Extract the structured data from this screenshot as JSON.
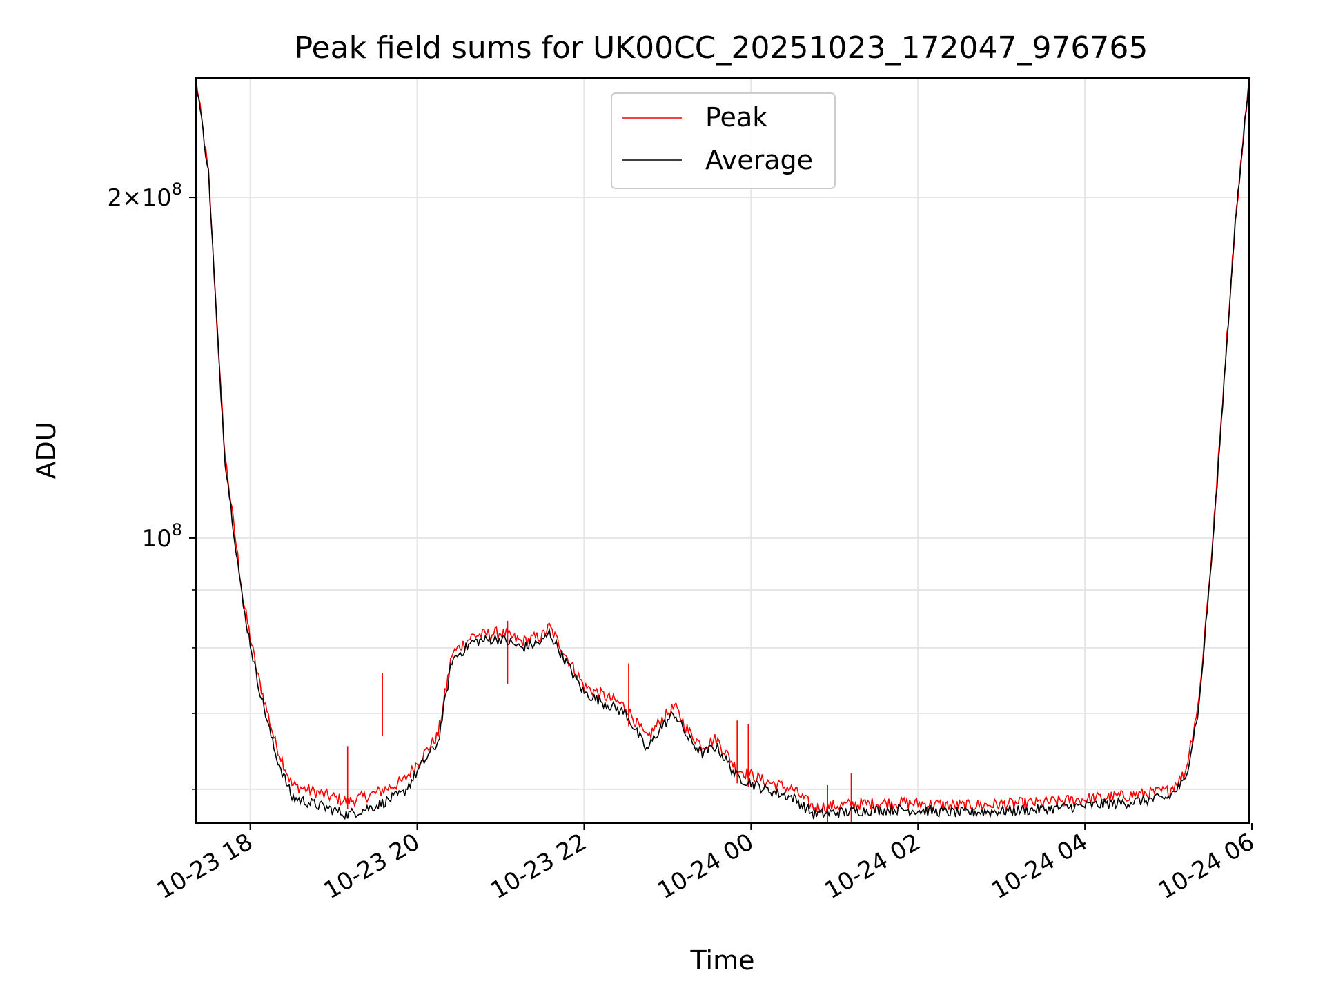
{
  "chart_data": {
    "type": "line",
    "title": "Peak field sums for UK00CC_20251023_172047_976765",
    "xlabel": "Time",
    "ylabel": "ADU",
    "y_scale": "log",
    "x_range": [
      "2025-10-23 17:21",
      "2025-10-24 05:58"
    ],
    "ylim": [
      56000000,
      255000000
    ],
    "grid": true,
    "legend_position": "upper center",
    "x_ticks": [
      {
        "time": "2025-10-23 18:00",
        "label": "10-23 18"
      },
      {
        "time": "2025-10-23 20:00",
        "label": "10-23 20"
      },
      {
        "time": "2025-10-23 22:00",
        "label": "10-23 22"
      },
      {
        "time": "2025-10-24 00:00",
        "label": "10-24 00"
      },
      {
        "time": "2025-10-24 02:00",
        "label": "10-24 02"
      },
      {
        "time": "2025-10-24 04:00",
        "label": "10-24 04"
      },
      {
        "time": "2025-10-24 06:00",
        "label": "10-24 06"
      }
    ],
    "y_major_ticks": [
      {
        "value": 200000000,
        "mantissa": "2",
        "exponent": "8"
      },
      {
        "value": 100000000,
        "mantissa": "",
        "exponent": "8"
      }
    ],
    "y_minor_ticks": [
      60000000,
      70000000,
      80000000,
      90000000
    ],
    "series": [
      {
        "name": "Peak",
        "color": "#ff0000",
        "points": [
          [
            "2025-10-23 17:21",
            255000000
          ],
          [
            "2025-10-23 17:30",
            210000000
          ],
          [
            "2025-10-23 17:38",
            140000000
          ],
          [
            "2025-10-23 17:42",
            118000000
          ],
          [
            "2025-10-23 17:48",
            103000000
          ],
          [
            "2025-10-23 17:55",
            88000000
          ],
          [
            "2025-10-23 18:05",
            76000000
          ],
          [
            "2025-10-23 18:18",
            66000000
          ],
          [
            "2025-10-23 18:30",
            60500000
          ],
          [
            "2025-10-23 18:50",
            59500000
          ],
          [
            "2025-10-23 19:10",
            58500000
          ],
          [
            "2025-10-23 19:30",
            59500000
          ],
          [
            "2025-10-23 19:50",
            61000000
          ],
          [
            "2025-10-23 20:05",
            64500000
          ],
          [
            "2025-10-23 20:15",
            67000000
          ],
          [
            "2025-10-23 20:25",
            79000000
          ],
          [
            "2025-10-23 20:40",
            82000000
          ],
          [
            "2025-10-23 21:00",
            82500000
          ],
          [
            "2025-10-23 21:15",
            81000000
          ],
          [
            "2025-10-23 21:30",
            82000000
          ],
          [
            "2025-10-23 21:35",
            83500000
          ],
          [
            "2025-10-23 21:45",
            79500000
          ],
          [
            "2025-10-23 22:00",
            74000000
          ],
          [
            "2025-10-23 22:15",
            72500000
          ],
          [
            "2025-10-23 22:30",
            71000000
          ],
          [
            "2025-10-23 22:45",
            66500000
          ],
          [
            "2025-10-23 22:55",
            69000000
          ],
          [
            "2025-10-23 23:05",
            71000000
          ],
          [
            "2025-10-23 23:15",
            67500000
          ],
          [
            "2025-10-23 23:25",
            65500000
          ],
          [
            "2025-10-23 23:35",
            66500000
          ],
          [
            "2025-10-23 23:50",
            62500000
          ],
          [
            "2025-10-24 00:10",
            61000000
          ],
          [
            "2025-10-24 00:30",
            60000000
          ],
          [
            "2025-10-24 00:45",
            57800000
          ],
          [
            "2025-10-24 01:15",
            58200000
          ],
          [
            "2025-10-24 01:45",
            58400000
          ],
          [
            "2025-10-24 02:30",
            58000000
          ],
          [
            "2025-10-24 03:30",
            58400000
          ],
          [
            "2025-10-24 04:00",
            58800000
          ],
          [
            "2025-10-24 04:30",
            59200000
          ],
          [
            "2025-10-24 05:00",
            59800000
          ],
          [
            "2025-10-24 05:12",
            62000000
          ],
          [
            "2025-10-24 05:22",
            72000000
          ],
          [
            "2025-10-24 05:32",
            100000000
          ],
          [
            "2025-10-24 05:42",
            150000000
          ],
          [
            "2025-10-24 05:48",
            190000000
          ],
          [
            "2025-10-24 05:58",
            255000000
          ]
        ],
        "spikes": [
          [
            "2025-10-23 19:35",
            76000000
          ],
          [
            "2025-10-23 19:10",
            65500000
          ],
          [
            "2025-10-23 21:05",
            84500000
          ],
          [
            "2025-10-23 22:32",
            77500000
          ],
          [
            "2025-10-23 23:50",
            69000000
          ],
          [
            "2025-10-23 23:58",
            68500000
          ],
          [
            "2025-10-24 00:55",
            60500000
          ],
          [
            "2025-10-24 01:12",
            62000000
          ]
        ]
      },
      {
        "name": "Average",
        "color": "#000000",
        "points": [
          [
            "2025-10-23 17:21",
            255000000
          ],
          [
            "2025-10-23 17:30",
            210000000
          ],
          [
            "2025-10-23 17:38",
            140000000
          ],
          [
            "2025-10-23 17:42",
            117000000
          ],
          [
            "2025-10-23 17:48",
            102000000
          ],
          [
            "2025-10-23 17:55",
            87000000
          ],
          [
            "2025-10-23 18:05",
            75000000
          ],
          [
            "2025-10-23 18:18",
            64500000
          ],
          [
            "2025-10-23 18:30",
            59000000
          ],
          [
            "2025-10-23 18:50",
            58000000
          ],
          [
            "2025-10-23 19:10",
            57000000
          ],
          [
            "2025-10-23 19:30",
            58000000
          ],
          [
            "2025-10-23 19:50",
            59500000
          ],
          [
            "2025-10-23 20:05",
            63500000
          ],
          [
            "2025-10-23 20:15",
            66000000
          ],
          [
            "2025-10-23 20:25",
            78000000
          ],
          [
            "2025-10-23 20:40",
            81000000
          ],
          [
            "2025-10-23 21:00",
            81500000
          ],
          [
            "2025-10-23 21:15",
            80000000
          ],
          [
            "2025-10-23 21:30",
            81000000
          ],
          [
            "2025-10-23 21:35",
            82500000
          ],
          [
            "2025-10-23 21:45",
            78500000
          ],
          [
            "2025-10-23 22:00",
            73000000
          ],
          [
            "2025-10-23 22:15",
            71500000
          ],
          [
            "2025-10-23 22:30",
            70000000
          ],
          [
            "2025-10-23 22:45",
            65000000
          ],
          [
            "2025-10-23 22:55",
            68000000
          ],
          [
            "2025-10-23 23:05",
            70000000
          ],
          [
            "2025-10-23 23:15",
            66500000
          ],
          [
            "2025-10-23 23:25",
            64500000
          ],
          [
            "2025-10-23 23:35",
            65500000
          ],
          [
            "2025-10-23 23:50",
            61500000
          ],
          [
            "2025-10-24 00:10",
            60000000
          ],
          [
            "2025-10-24 00:30",
            59000000
          ],
          [
            "2025-10-24 00:45",
            57000000
          ],
          [
            "2025-10-24 01:15",
            57400000
          ],
          [
            "2025-10-24 01:45",
            57600000
          ],
          [
            "2025-10-24 02:30",
            57200000
          ],
          [
            "2025-10-24 03:30",
            57600000
          ],
          [
            "2025-10-24 04:00",
            58000000
          ],
          [
            "2025-10-24 04:30",
            58400000
          ],
          [
            "2025-10-24 05:00",
            59000000
          ],
          [
            "2025-10-24 05:12",
            61000000
          ],
          [
            "2025-10-24 05:22",
            71000000
          ],
          [
            "2025-10-24 05:32",
            99000000
          ],
          [
            "2025-10-24 05:42",
            149000000
          ],
          [
            "2025-10-24 05:48",
            189000000
          ],
          [
            "2025-10-24 05:58",
            255000000
          ]
        ]
      }
    ]
  }
}
